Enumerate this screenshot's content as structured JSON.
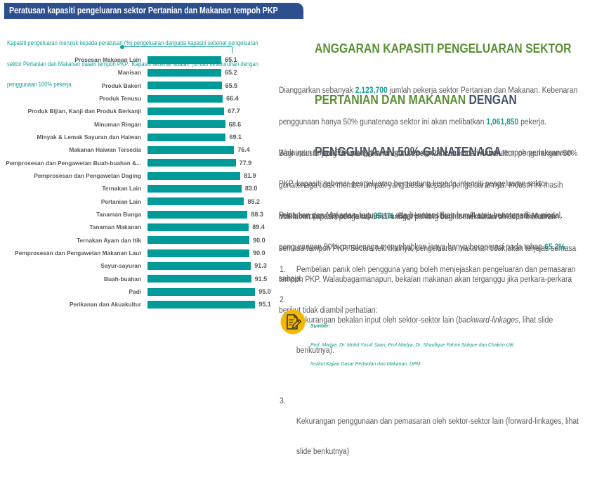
{
  "left_panel": {
    "header": "Peratusan kapasiti pengeluaran sektor Pertanian dan Makanan tempoh PKP",
    "description_lines": [
      "Kapasiti pengeluaran merujuk kepada peratusan (%) pengeluaran daripada kapasiti sebenar pengeluaran",
      "sektor Pertanian dan Makanan dalam tempoh PKP.  Kapasiti sebenar adalah  jumlah keseluruhan dengan",
      "penggunaan 100% pekerja."
    ]
  },
  "chart_data": {
    "type": "bar",
    "orientation": "horizontal",
    "title": "Peratusan kapasiti pengeluaran sektor Pertanian dan Makanan tempoh PKP",
    "subtitle": "Kapasiti pengeluaran merujuk kepada peratusan (%) pengeluaran daripada kapasiti sebenar pengeluaran sektor Pertanian dan Makanan dalam tempoh PKP. Kapasiti sebenar adalah jumlah keseluruhan dengan penggunaan 100% pekerja.",
    "xlabel": "",
    "ylabel": "",
    "xlim": [
      0,
      100
    ],
    "grid": false,
    "legend": null,
    "data_labels": true,
    "bar_color": "#009B98",
    "categories": [
      "Prosesan Makanan Lain",
      "Manisan",
      "Produk Bakeri",
      "Produk Tenusu",
      "Produk Bijian, Kanji dan Produk Berkanji",
      "Minuman Ringan",
      "Minyak & Lemak Sayuran dan Haiwan",
      "Makanan Haiwan Tersedia",
      "Pemprosesan dan Pengawetan Buah-buahan &...",
      "Pemprosesan dan Pengawetan Daging",
      "Ternakan Lain",
      "Pertanian Lain",
      "Tanaman Bunga",
      "Tanaman Makanan",
      "Ternakan Ayam dan Itik",
      "Pemprosesan dan Pengawetan Makanan Laut",
      "Sayur-sayuran",
      "Buah-buahan",
      "Padi",
      "Perikanan dan Akuakultur"
    ],
    "values": [
      65.1,
      65.2,
      65.5,
      66.4,
      67.7,
      68.6,
      69.1,
      76.4,
      77.9,
      81.9,
      83.0,
      85.2,
      88.3,
      89.4,
      90.0,
      90.0,
      91.3,
      91.5,
      95.0,
      95.1
    ],
    "value_labels": [
      "65.1",
      "65.2",
      "65.5",
      "66.4",
      "67.7",
      "68.6",
      "69.1",
      "76.4",
      "77.9",
      "81.9",
      "83.0",
      "85.2",
      "88.3",
      "89.4",
      "90.0",
      "90.0",
      "91.3",
      "91.5",
      "95.0",
      "95.1"
    ]
  },
  "right_panel": {
    "title": {
      "line1": "ANGGARAN KAPASITI PENGELUARAN SEKTOR",
      "line2_green": "PERTANIAN DAN MAKANAN",
      "line2_slate": " DENGAN",
      "line3": "PENGGUNAAN 50% GUNATENAGA",
      "colors": {
        "green": "#5A8F35",
        "slate": "#44556B"
      }
    },
    "paragraph1": {
      "l1_a": "Dianggarkan sebanyak ",
      "l1_num": "2,123,700",
      "l1_b": " jumlah pekerja sektor Pertanian dan Makanan. Kebenaran",
      "l2_a": "penggunaan hanya 50% gunatenaga sektor ini akan melibatkan ",
      "l2_num": "1,061,850",
      "l2_b": " pekerja.",
      "l3": "Walaupun hanya 50% penggunaan gunatenaga dibenarkan di dalam tempoh perlaksanaan",
      "l4": "PKP, kapasiti sebenar pengeluaran bergantung kepada intensiti pengeluaran sektor",
      "l5": "Pertanian dan Makanan, iaitu sama ada berintensifkan buruh atau berintensifkan modal."
    },
    "paragraph2": {
      "l1": "Bagi industri yang berintensifkan modal seperti Perikanan dan Akuakultur, pengurangan 50%",
      "l2": "gunatenaga tidak memberi impak yang besar kepada pengeluarannya. Industri ini masih",
      "l3_a": "boleh beroperasi pada tahap ",
      "l3_num": "95.1%",
      "l3_b": ". Bagi industri berintensifkan buruh seperti Manisan,",
      "l4_a": "pengurangan 50% gunatenaga menyebabkan ianya hanya beroperasi pada tahap ",
      "l4_num": "65.2%",
      "l5": "sahaja."
    },
    "paragraph3": {
      "l1": "Maklumat kapasiti pengeluaran ini sangat penting bagi menentukan bekalan makanan",
      "l2": "semasa tempoh PKP. Secara teknikalnya, pengeluaran makanan tidak akan terjejas semasa",
      "l3": "tempoh PKP. Walaubagaimanapun, bekalan makanan akan terganggu jika perkara-perkara",
      "l4": "berikut tidak diambil perhatian:"
    },
    "list": [
      {
        "num": "1.",
        "l1": "Pembelian panik oleh pengguna yang boleh menjejaskan pengeluaran dan pemasaran"
      },
      {
        "num": "2.",
        "l1_a": "Kekurangan bekalan input oleh sektor-sektor lain (",
        "l1_italic": "backward-linkages",
        "l1_b": ", lihat slide",
        "l2": "berikutnya)."
      },
      {
        "num": "3.",
        "l1": "Kekurangan penggunaan dan pemasaran oleh sektor-sektor lain (forward-linkages, lihat",
        "l2": "slide berikutnya)"
      }
    ],
    "highlight_color": "#119E96"
  },
  "source": {
    "icon": "document-pencil-icon",
    "label": "Sumber:",
    "authors": "Prof. Madya. Dr. Mohd Yusof Saari, Prof Madya. Dr. Shaufique Fahmi Sidique dan Chakrin Utit",
    "institution": "Institut Kajian Dasar Pertanian dan Makanan, UPM"
  }
}
